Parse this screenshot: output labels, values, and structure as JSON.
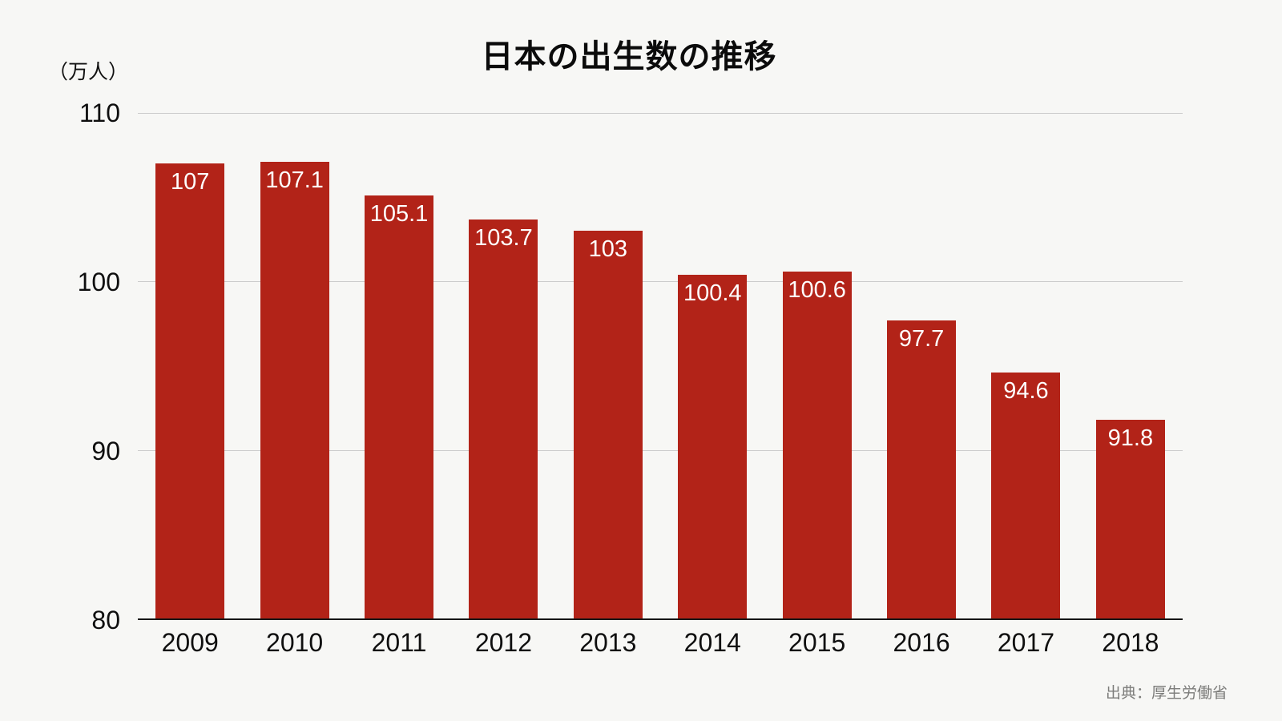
{
  "chart_data": {
    "type": "bar",
    "title": "日本の出生数の推移",
    "unit_label": "（万人）",
    "categories": [
      "2009",
      "2010",
      "2011",
      "2012",
      "2013",
      "2014",
      "2015",
      "2016",
      "2017",
      "2018"
    ],
    "values": [
      107,
      107.1,
      105.1,
      103.7,
      103,
      100.4,
      100.6,
      97.7,
      94.6,
      91.8
    ],
    "value_labels": [
      "107",
      "107.1",
      "105.1",
      "103.7",
      "103",
      "100.4",
      "100.6",
      "97.7",
      "94.6",
      "91.8"
    ],
    "ylim": [
      80,
      110
    ],
    "yticks": [
      110,
      100,
      90,
      80
    ],
    "grid": true,
    "legend": "none",
    "bar_color": "#b22318",
    "background_color": "#f7f7f5",
    "gridline_color": "#cccccc",
    "axis_color": "#161616",
    "value_label_color": "#ffffff",
    "source": "出典：厚生労働省"
  }
}
